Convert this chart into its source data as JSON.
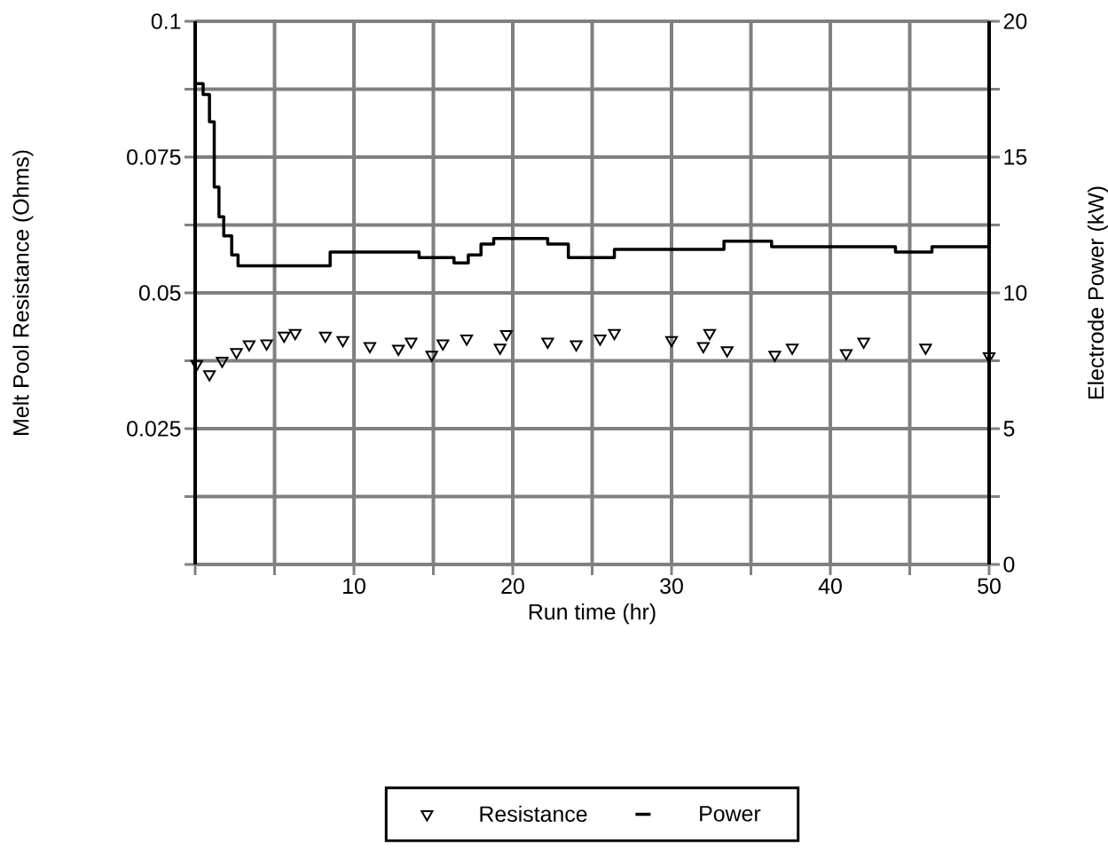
{
  "chart_data": {
    "type": "step",
    "xlabel": "Run time (hr)",
    "ylabel": "Melt Pool Resistance (Ohms)",
    "y2label": "Electrode Power (kW)",
    "xlim": [
      0,
      50
    ],
    "xticks": [
      {
        "value": 0,
        "label": null
      },
      {
        "value": 5,
        "label": null
      },
      10,
      {
        "value": 15,
        "label": null
      },
      20,
      {
        "value": 25,
        "label": null
      },
      30,
      {
        "value": 35,
        "label": null
      },
      40,
      {
        "value": 45,
        "label": null
      },
      50
    ],
    "ylim": [
      0,
      0.1
    ],
    "yticks": [
      {
        "value": 0,
        "label": null
      },
      {
        "value": 0.0125,
        "label": null
      },
      0.025,
      {
        "value": 0.0375,
        "label": null
      },
      0.05,
      {
        "value": 0.0625,
        "label": null
      },
      0.075,
      {
        "value": 0.0875,
        "label": null
      },
      0.1
    ],
    "y2lim": [
      0,
      20
    ],
    "y2ticks": [
      0,
      {
        "value": 2.5,
        "label": null
      },
      5,
      {
        "value": 7.5,
        "label": null
      },
      10,
      {
        "value": 12.5,
        "label": null
      },
      15,
      {
        "value": 17.5,
        "label": null
      },
      20
    ],
    "grid": true,
    "legend": "bottom",
    "series": [
      {
        "name": "Resistance",
        "type": "scatter",
        "marker": "triangle",
        "color": "#000000",
        "x": [
          0.1,
          0.9,
          1.7,
          2.6,
          3.4,
          4.5,
          5.6,
          6.3,
          8.2,
          9.3,
          11.0,
          12.8,
          13.6,
          14.9,
          15.6,
          17.1,
          19.2,
          19.6,
          22.2,
          24.0,
          25.5,
          26.4,
          30.0,
          32.0,
          32.4,
          33.5,
          36.5,
          37.6,
          41.0,
          42.1,
          46.0,
          50.0
        ],
        "values": [
          0.0369,
          0.035,
          0.0375,
          0.0391,
          0.0405,
          0.0407,
          0.0421,
          0.0426,
          0.0421,
          0.0413,
          0.0402,
          0.0397,
          0.041,
          0.0386,
          0.0407,
          0.0416,
          0.0399,
          0.0424,
          0.041,
          0.0405,
          0.0416,
          0.0426,
          0.0413,
          0.0402,
          0.0426,
          0.0394,
          0.0386,
          0.0399,
          0.0389,
          0.041,
          0.0399,
          0.0383
        ]
      },
      {
        "name": "Power",
        "axis": "y2",
        "color": "#000000",
        "x": [
          0,
          0.5,
          0.9,
          1.2,
          1.5,
          1.8,
          2.3,
          2.7,
          8.5,
          14.1,
          16.3,
          17.2,
          18.0,
          18.8,
          22.2,
          23.5,
          26.4,
          33.3,
          36.3,
          44.1,
          46.4,
          50
        ],
        "values": [
          17.7,
          17.3,
          16.3,
          13.9,
          12.8,
          12.1,
          11.4,
          11.0,
          11.5,
          11.3,
          11.1,
          11.4,
          11.8,
          12.0,
          11.8,
          11.3,
          11.6,
          11.9,
          11.7,
          11.5,
          11.7,
          11.7
        ]
      }
    ]
  }
}
